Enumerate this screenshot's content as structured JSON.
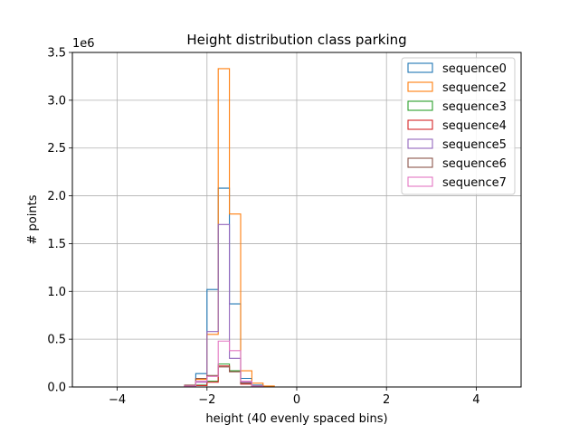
{
  "chart_data": {
    "type": "histogram",
    "title": "Height distribution class parking",
    "xlabel": "height (40 evenly spaced bins)",
    "ylabel": "# points",
    "y_scale_label": "1e6",
    "xlim": [
      -5,
      5
    ],
    "ylim": [
      0,
      3500000
    ],
    "x_ticks": [
      -4,
      -2,
      0,
      2,
      4
    ],
    "x_tick_labels": [
      "−4",
      "−2",
      "0",
      "2",
      "4"
    ],
    "y_ticks": [
      0,
      500000,
      1000000,
      1500000,
      2000000,
      2500000,
      3000000,
      3500000
    ],
    "y_tick_labels": [
      "0.0",
      "0.5",
      "1.0",
      "1.5",
      "2.0",
      "2.5",
      "3.0",
      "3.5"
    ],
    "grid": true,
    "legend_position": "top-right",
    "histtype": "step",
    "bin_edges": [
      -5.0,
      -4.75,
      -4.5,
      -4.25,
      -4.0,
      -3.75,
      -3.5,
      -3.25,
      -3.0,
      -2.75,
      -2.5,
      -2.25,
      -2.0,
      -1.75,
      -1.5,
      -1.25,
      -1.0,
      -0.75,
      -0.5,
      -0.25,
      0.0,
      0.25,
      0.5,
      0.75,
      1.0,
      1.25,
      1.5,
      1.75,
      2.0,
      2.25,
      2.5,
      2.75,
      3.0,
      3.25,
      3.5,
      3.75,
      4.0,
      4.25,
      4.5,
      4.75,
      5.0
    ],
    "series": [
      {
        "name": "sequence0",
        "color": "#1f77b4",
        "values": [
          0,
          0,
          0,
          0,
          0,
          0,
          0,
          0,
          0,
          0,
          10000,
          140000,
          1020000,
          2080000,
          870000,
          90000,
          20000,
          0,
          0,
          0,
          0,
          0,
          0,
          0,
          0,
          0,
          0,
          0,
          0,
          0,
          0,
          0,
          0,
          0,
          0,
          0,
          0,
          0,
          0,
          0
        ]
      },
      {
        "name": "sequence2",
        "color": "#ff7f0e",
        "values": [
          0,
          0,
          0,
          0,
          0,
          0,
          0,
          0,
          0,
          0,
          15000,
          80000,
          550000,
          3330000,
          1810000,
          170000,
          40000,
          10000,
          0,
          0,
          0,
          0,
          0,
          0,
          0,
          0,
          0,
          0,
          0,
          0,
          0,
          0,
          0,
          0,
          0,
          0,
          0,
          0,
          0,
          0
        ]
      },
      {
        "name": "sequence3",
        "color": "#2ca02c",
        "values": [
          0,
          0,
          0,
          0,
          0,
          0,
          0,
          0,
          0,
          0,
          3000,
          20000,
          60000,
          240000,
          170000,
          40000,
          10000,
          0,
          0,
          0,
          0,
          0,
          0,
          0,
          0,
          0,
          0,
          0,
          0,
          0,
          0,
          0,
          0,
          0,
          0,
          0,
          0,
          0,
          0,
          0
        ]
      },
      {
        "name": "sequence4",
        "color": "#d62728",
        "values": [
          0,
          0,
          0,
          0,
          0,
          0,
          0,
          0,
          0,
          0,
          2000,
          15000,
          50000,
          220000,
          160000,
          30000,
          8000,
          0,
          0,
          0,
          0,
          0,
          0,
          0,
          0,
          0,
          0,
          0,
          0,
          0,
          0,
          0,
          0,
          0,
          0,
          0,
          0,
          0,
          0,
          0
        ]
      },
      {
        "name": "sequence5",
        "color": "#9467bd",
        "values": [
          0,
          0,
          0,
          0,
          0,
          0,
          0,
          0,
          0,
          0,
          5000,
          50000,
          580000,
          1700000,
          300000,
          50000,
          10000,
          0,
          0,
          0,
          0,
          0,
          0,
          0,
          0,
          0,
          0,
          0,
          0,
          0,
          0,
          0,
          0,
          0,
          0,
          0,
          0,
          0,
          0,
          0
        ]
      },
      {
        "name": "sequence6",
        "color": "#8c564b",
        "values": [
          0,
          0,
          0,
          0,
          0,
          0,
          0,
          0,
          0,
          0,
          20000,
          90000,
          120000,
          210000,
          160000,
          40000,
          10000,
          0,
          0,
          0,
          0,
          0,
          0,
          0,
          0,
          0,
          0,
          0,
          0,
          0,
          0,
          0,
          0,
          0,
          0,
          0,
          0,
          0,
          0,
          0
        ]
      },
      {
        "name": "sequence7",
        "color": "#e377c2",
        "values": [
          0,
          0,
          0,
          0,
          0,
          0,
          0,
          0,
          0,
          0,
          10000,
          60000,
          110000,
          480000,
          380000,
          60000,
          10000,
          0,
          0,
          0,
          0,
          0,
          0,
          0,
          0,
          0,
          0,
          0,
          0,
          0,
          0,
          0,
          0,
          0,
          0,
          0,
          0,
          0,
          0,
          0
        ]
      }
    ]
  }
}
